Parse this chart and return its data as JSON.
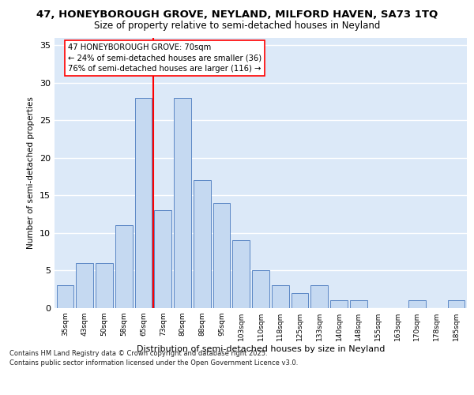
{
  "title_line1": "47, HONEYBOROUGH GROVE, NEYLAND, MILFORD HAVEN, SA73 1TQ",
  "title_line2": "Size of property relative to semi-detached houses in Neyland",
  "xlabel": "Distribution of semi-detached houses by size in Neyland",
  "ylabel": "Number of semi-detached properties",
  "categories": [
    "35sqm",
    "43sqm",
    "50sqm",
    "58sqm",
    "65sqm",
    "73sqm",
    "80sqm",
    "88sqm",
    "95sqm",
    "103sqm",
    "110sqm",
    "118sqm",
    "125sqm",
    "133sqm",
    "140sqm",
    "148sqm",
    "155sqm",
    "163sqm",
    "170sqm",
    "178sqm",
    "185sqm"
  ],
  "values": [
    3,
    6,
    6,
    11,
    28,
    13,
    28,
    17,
    14,
    9,
    5,
    3,
    2,
    3,
    1,
    1,
    0,
    0,
    1,
    0,
    1
  ],
  "bar_color": "#c5d9f1",
  "bar_edge_color": "#5b87c5",
  "vline_x_index": 4.5,
  "vline_color": "red",
  "annotation_text": "47 HONEYBOROUGH GROVE: 70sqm\n← 24% of semi-detached houses are smaller (36)\n76% of semi-detached houses are larger (116) →",
  "ylim": [
    0,
    36
  ],
  "yticks": [
    0,
    5,
    10,
    15,
    20,
    25,
    30,
    35
  ],
  "footer_line1": "Contains HM Land Registry data © Crown copyright and database right 2025.",
  "footer_line2": "Contains public sector information licensed under the Open Government Licence v3.0.",
  "bg_color": "#dce9f8"
}
